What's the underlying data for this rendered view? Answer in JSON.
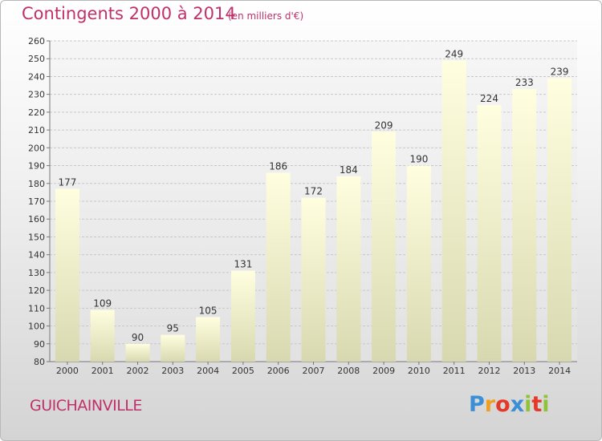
{
  "title": "Contingents 2000 à 2014",
  "unit_note": "(en milliers d'€)",
  "commune": "GUICHAINVILLE",
  "logo": {
    "letters": [
      "P",
      "r",
      "o",
      "x",
      "i",
      "t",
      "i"
    ],
    "colors": [
      "#3a8fd6",
      "#f0a020",
      "#e33a2a",
      "#3a8fd6",
      "#8fc43a",
      "#e33a2a",
      "#8fc43a"
    ]
  },
  "colors": {
    "accent": "#c0306a",
    "bar_top": "#ffffe0",
    "bar_bottom": "#d8d8b0"
  },
  "chart_data": {
    "type": "bar",
    "title": "Contingents 2000 à 2014",
    "subtitle": "(en milliers d'€)",
    "categories": [
      "2000",
      "2001",
      "2002",
      "2003",
      "2004",
      "2005",
      "2006",
      "2007",
      "2008",
      "2009",
      "2010",
      "2011",
      "2012",
      "2013",
      "2014"
    ],
    "values": [
      177,
      109,
      90,
      95,
      105,
      131,
      186,
      172,
      184,
      209,
      190,
      249,
      224,
      233,
      239
    ],
    "ylim": [
      80,
      260
    ],
    "yticks": [
      80,
      90,
      100,
      110,
      120,
      130,
      140,
      150,
      160,
      170,
      180,
      190,
      200,
      210,
      220,
      230,
      240,
      250,
      260
    ],
    "grid": true,
    "xlabel": "",
    "ylabel": ""
  }
}
